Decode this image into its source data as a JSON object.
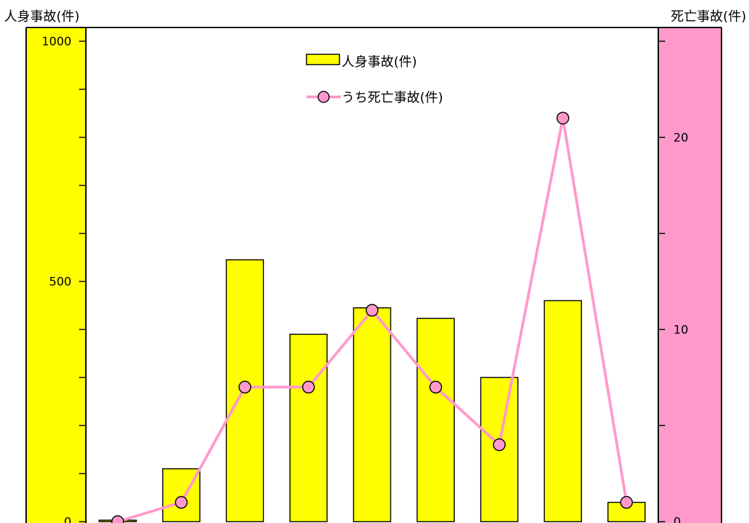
{
  "chart_data": {
    "type": "bar",
    "title": "",
    "categories": [
      "",
      "",
      "",
      "",
      "",
      "",
      "",
      "",
      ""
    ],
    "series": [
      {
        "name": "人身事故(件)",
        "type": "bar",
        "axis": "left",
        "values": [
          3,
          110,
          545,
          390,
          445,
          423,
          300,
          460,
          40
        ]
      },
      {
        "name": "うち死亡事故(件)",
        "type": "line",
        "axis": "right",
        "values": [
          0,
          1,
          7,
          7,
          11,
          7,
          4,
          21,
          1
        ]
      }
    ],
    "y_left": {
      "label": "人身事故(件)",
      "ylim": [
        0,
        1000
      ],
      "tick_labels": [
        "0",
        "500",
        "1000"
      ]
    },
    "y_right": {
      "label": "死亡事故(件)",
      "ylim": [
        0,
        25
      ],
      "tick_labels": [
        "0",
        "10",
        "20"
      ]
    },
    "grid": false,
    "legend_position": "top-center",
    "colors": {
      "bar_fill": "#ffff00",
      "bar_stroke": "#000000",
      "left_axis_band": "#ffff00",
      "right_axis_band": "#ff99cc",
      "line": "#ff99cc",
      "marker_fill": "#ff99cc",
      "marker_stroke": "#000000",
      "axis_line": "#000000"
    }
  }
}
